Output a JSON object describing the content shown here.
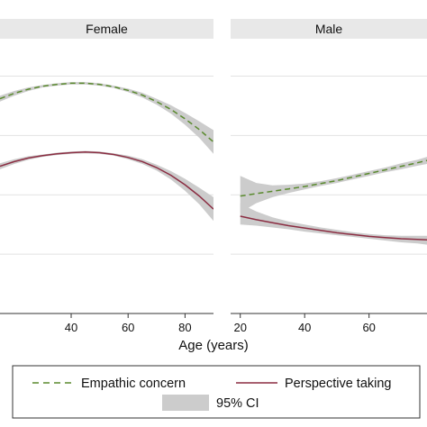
{
  "chart_data": {
    "type": "line",
    "xlabel": "Age (years)",
    "ylabel": "",
    "ylim": [
      0,
      4.6
    ],
    "grid": true,
    "legend_position": "bottom",
    "legend": {
      "entries": [
        {
          "label": "Empathic concern",
          "style": "dashed",
          "color": "#5a8a2e"
        },
        {
          "label": "Perspective taking",
          "style": "solid",
          "color": "#8b2d42"
        },
        {
          "label": "95% CI",
          "style": "band",
          "color": "#cccccc"
        }
      ]
    },
    "colors": {
      "band": "#cccccc",
      "strip": "#e8e8e8",
      "grid": "#e2e2e2"
    },
    "panels": [
      {
        "title": "Female",
        "xlim": [
          15,
          90
        ],
        "xticks": [
          40,
          60,
          80
        ],
        "series": [
          {
            "name": "Empathic concern",
            "x": [
              15,
              20,
              25,
              30,
              35,
              40,
              45,
              50,
              55,
              60,
              65,
              70,
              75,
              80,
              85,
              90
            ],
            "y": [
              3.62,
              3.71,
              3.78,
              3.83,
              3.86,
              3.88,
              3.88,
              3.86,
              3.82,
              3.76,
              3.68,
              3.57,
              3.44,
              3.28,
              3.1,
              2.89
            ],
            "lower": [
              3.57,
              3.67,
              3.75,
              3.81,
              3.84,
              3.86,
              3.86,
              3.84,
              3.8,
              3.73,
              3.64,
              3.52,
              3.37,
              3.18,
              2.96,
              2.69
            ],
            "upper": [
              3.67,
              3.75,
              3.81,
              3.85,
              3.88,
              3.9,
              3.9,
              3.88,
              3.84,
              3.79,
              3.72,
              3.62,
              3.51,
              3.38,
              3.24,
              3.09
            ]
          },
          {
            "name": "Perspective taking",
            "x": [
              15,
              20,
              25,
              30,
              35,
              40,
              45,
              50,
              55,
              60,
              65,
              70,
              75,
              80,
              85,
              90
            ],
            "y": [
              2.48,
              2.56,
              2.62,
              2.66,
              2.69,
              2.71,
              2.72,
              2.71,
              2.68,
              2.63,
              2.56,
              2.46,
              2.33,
              2.17,
              1.98,
              1.76
            ],
            "lower": [
              2.43,
              2.52,
              2.59,
              2.64,
              2.67,
              2.69,
              2.7,
              2.69,
              2.66,
              2.6,
              2.52,
              2.41,
              2.26,
              2.07,
              1.84,
              1.56
            ],
            "upper": [
              2.53,
              2.6,
              2.65,
              2.68,
              2.71,
              2.73,
              2.74,
              2.73,
              2.7,
              2.66,
              2.6,
              2.51,
              2.4,
              2.27,
              2.12,
              1.96
            ]
          }
        ]
      },
      {
        "title": "Male",
        "xlim": [
          17,
          78
        ],
        "xticks": [
          20,
          40,
          60
        ],
        "series": [
          {
            "name": "Empathic concern",
            "x": [
              20,
              25,
              30,
              35,
              40,
              45,
              50,
              55,
              60,
              65,
              70,
              75,
              78
            ],
            "y": [
              1.98,
              2.02,
              2.06,
              2.1,
              2.14,
              2.19,
              2.24,
              2.3,
              2.36,
              2.42,
              2.48,
              2.54,
              2.58
            ],
            "lower": [
              1.7,
              1.86,
              1.96,
              2.03,
              2.09,
              2.15,
              2.2,
              2.26,
              2.32,
              2.38,
              2.43,
              2.49,
              2.52
            ],
            "upper": [
              2.32,
              2.2,
              2.16,
              2.17,
              2.19,
              2.23,
              2.28,
              2.34,
              2.4,
              2.46,
              2.53,
              2.59,
              2.64
            ]
          },
          {
            "name": "Perspective taking",
            "x": [
              20,
              25,
              30,
              35,
              40,
              45,
              50,
              55,
              60,
              65,
              70,
              75,
              78
            ],
            "y": [
              1.64,
              1.58,
              1.53,
              1.48,
              1.44,
              1.4,
              1.36,
              1.33,
              1.3,
              1.28,
              1.26,
              1.25,
              1.24
            ],
            "lower": [
              1.5,
              1.48,
              1.45,
              1.42,
              1.38,
              1.35,
              1.32,
              1.29,
              1.26,
              1.23,
              1.2,
              1.18,
              1.16
            ],
            "upper": [
              1.85,
              1.72,
              1.62,
              1.55,
              1.5,
              1.45,
              1.41,
              1.37,
              1.34,
              1.32,
              1.31,
              1.31,
              1.31
            ]
          }
        ]
      }
    ]
  }
}
